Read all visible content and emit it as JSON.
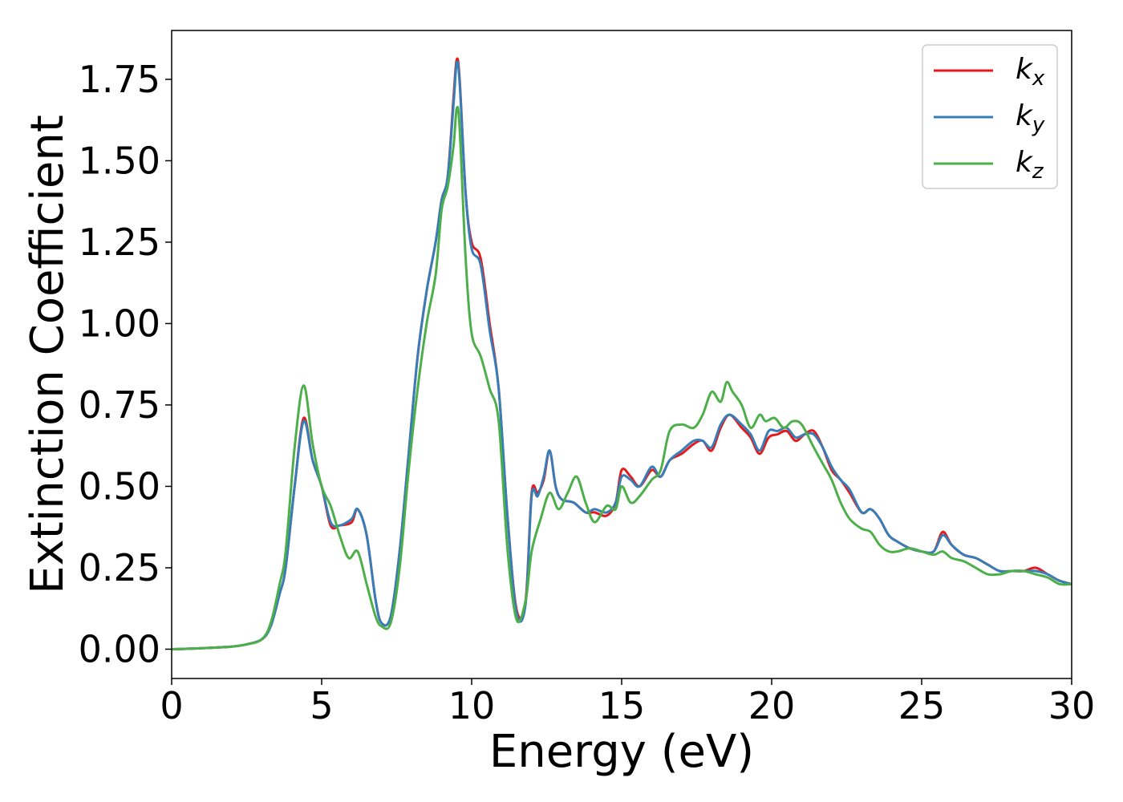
{
  "chart_data": {
    "type": "line",
    "title": "",
    "xlabel": "Energy (eV)",
    "ylabel": "Extinction Coefficient",
    "xlim": [
      0,
      30
    ],
    "ylim": [
      -0.09,
      1.9
    ],
    "xticks": [
      0,
      5,
      10,
      15,
      20,
      25,
      30
    ],
    "xtick_labels": [
      "0",
      "5",
      "10",
      "15",
      "20",
      "25",
      "30"
    ],
    "yticks": [
      0.0,
      0.25,
      0.5,
      0.75,
      1.0,
      1.25,
      1.5,
      1.75
    ],
    "ytick_labels": [
      "0.00",
      "0.25",
      "0.50",
      "0.75",
      "1.00",
      "1.25",
      "1.50",
      "1.75"
    ],
    "grid": false,
    "legend_position": "top-right",
    "series": [
      {
        "name": "k",
        "subscript": "x",
        "color": "#e41a1c",
        "x": [
          0,
          1,
          2,
          2.5,
          3,
          3.3,
          3.6,
          3.8,
          4.1,
          4.4,
          4.7,
          5.0,
          5.3,
          5.6,
          6.0,
          6.2,
          6.5,
          6.8,
          7.0,
          7.3,
          7.6,
          7.9,
          8.2,
          8.5,
          8.8,
          9.0,
          9.2,
          9.4,
          9.5,
          9.6,
          9.8,
          10.0,
          10.3,
          10.6,
          10.9,
          11.2,
          11.5,
          11.8,
          12.0,
          12.2,
          12.4,
          12.6,
          12.8,
          13.0,
          13.4,
          13.8,
          14.1,
          14.5,
          14.8,
          15.0,
          15.3,
          15.6,
          16.0,
          16.3,
          16.6,
          17.0,
          17.4,
          17.7,
          18.0,
          18.3,
          18.6,
          19.0,
          19.3,
          19.6,
          19.9,
          20.2,
          20.5,
          20.8,
          21.1,
          21.4,
          21.7,
          22.0,
          22.3,
          22.6,
          23.0,
          23.3,
          23.6,
          23.9,
          24.2,
          24.6,
          25.0,
          25.4,
          25.7,
          26.0,
          26.4,
          26.8,
          27.2,
          27.6,
          28.0,
          28.4,
          28.8,
          29.2,
          29.6,
          30.0
        ],
        "y": [
          0.0,
          0.003,
          0.008,
          0.015,
          0.03,
          0.07,
          0.17,
          0.25,
          0.5,
          0.71,
          0.58,
          0.5,
          0.38,
          0.38,
          0.39,
          0.43,
          0.35,
          0.15,
          0.08,
          0.1,
          0.3,
          0.6,
          0.9,
          1.1,
          1.25,
          1.38,
          1.45,
          1.7,
          1.81,
          1.75,
          1.4,
          1.25,
          1.2,
          1.0,
          0.8,
          0.4,
          0.12,
          0.15,
          0.48,
          0.48,
          0.52,
          0.61,
          0.5,
          0.46,
          0.45,
          0.42,
          0.42,
          0.41,
          0.45,
          0.55,
          0.53,
          0.5,
          0.55,
          0.53,
          0.58,
          0.6,
          0.63,
          0.64,
          0.61,
          0.68,
          0.72,
          0.68,
          0.65,
          0.6,
          0.65,
          0.66,
          0.67,
          0.64,
          0.66,
          0.67,
          0.62,
          0.55,
          0.52,
          0.48,
          0.42,
          0.43,
          0.4,
          0.35,
          0.33,
          0.31,
          0.3,
          0.3,
          0.36,
          0.32,
          0.29,
          0.28,
          0.26,
          0.24,
          0.24,
          0.24,
          0.25,
          0.23,
          0.21,
          0.2
        ]
      },
      {
        "name": "k",
        "subscript": "y",
        "color": "#377eb8",
        "x": [
          0,
          1,
          2,
          2.5,
          3,
          3.3,
          3.6,
          3.8,
          4.1,
          4.4,
          4.7,
          5.0,
          5.3,
          5.6,
          6.0,
          6.2,
          6.5,
          6.8,
          7.0,
          7.3,
          7.6,
          7.9,
          8.2,
          8.5,
          8.8,
          9.0,
          9.2,
          9.4,
          9.5,
          9.6,
          9.8,
          10.0,
          10.3,
          10.6,
          10.9,
          11.2,
          11.5,
          11.8,
          12.0,
          12.2,
          12.4,
          12.6,
          12.8,
          13.0,
          13.4,
          13.8,
          14.1,
          14.5,
          14.8,
          15.0,
          15.3,
          15.6,
          16.0,
          16.3,
          16.6,
          17.0,
          17.4,
          17.7,
          18.0,
          18.3,
          18.6,
          19.0,
          19.3,
          19.6,
          19.9,
          20.2,
          20.5,
          20.8,
          21.1,
          21.4,
          21.7,
          22.0,
          22.3,
          22.6,
          23.0,
          23.3,
          23.6,
          23.9,
          24.2,
          24.6,
          25.0,
          25.4,
          25.7,
          26.0,
          26.4,
          26.8,
          27.2,
          27.6,
          28.0,
          28.4,
          28.8,
          29.2,
          29.6,
          30.0
        ],
        "y": [
          0.0,
          0.003,
          0.008,
          0.015,
          0.03,
          0.07,
          0.17,
          0.25,
          0.5,
          0.7,
          0.58,
          0.5,
          0.39,
          0.38,
          0.4,
          0.43,
          0.35,
          0.15,
          0.08,
          0.1,
          0.3,
          0.6,
          0.9,
          1.1,
          1.25,
          1.38,
          1.45,
          1.68,
          1.8,
          1.74,
          1.4,
          1.23,
          1.18,
          0.98,
          0.8,
          0.4,
          0.11,
          0.14,
          0.47,
          0.47,
          0.53,
          0.61,
          0.5,
          0.46,
          0.45,
          0.42,
          0.43,
          0.42,
          0.45,
          0.53,
          0.52,
          0.5,
          0.56,
          0.53,
          0.58,
          0.61,
          0.64,
          0.64,
          0.62,
          0.69,
          0.72,
          0.69,
          0.66,
          0.61,
          0.67,
          0.67,
          0.68,
          0.65,
          0.66,
          0.66,
          0.62,
          0.56,
          0.52,
          0.49,
          0.42,
          0.43,
          0.4,
          0.35,
          0.33,
          0.31,
          0.3,
          0.3,
          0.35,
          0.32,
          0.29,
          0.28,
          0.26,
          0.24,
          0.24,
          0.24,
          0.24,
          0.23,
          0.21,
          0.2
        ]
      },
      {
        "name": "k",
        "subscript": "z",
        "color": "#4daf4a",
        "x": [
          0,
          1,
          2,
          2.5,
          3,
          3.3,
          3.6,
          3.8,
          4.1,
          4.4,
          4.7,
          5.0,
          5.3,
          5.6,
          5.9,
          6.2,
          6.5,
          6.8,
          7.0,
          7.3,
          7.6,
          7.9,
          8.2,
          8.5,
          8.8,
          9.0,
          9.2,
          9.4,
          9.5,
          9.6,
          9.8,
          10.0,
          10.3,
          10.6,
          10.9,
          11.2,
          11.5,
          11.8,
          12.0,
          12.3,
          12.6,
          12.9,
          13.2,
          13.5,
          13.8,
          14.1,
          14.5,
          14.8,
          15.0,
          15.3,
          15.6,
          16.0,
          16.3,
          16.6,
          17.0,
          17.4,
          17.7,
          18.0,
          18.3,
          18.5,
          18.7,
          19.0,
          19.3,
          19.6,
          19.8,
          20.1,
          20.4,
          20.7,
          21.0,
          21.4,
          21.7,
          22.0,
          22.3,
          22.6,
          23.0,
          23.3,
          23.6,
          23.9,
          24.2,
          24.6,
          25.0,
          25.4,
          25.7,
          26.0,
          26.4,
          26.8,
          27.2,
          27.6,
          28.0,
          28.4,
          28.8,
          29.2,
          29.6,
          30.0
        ],
        "y": [
          0.0,
          0.003,
          0.008,
          0.015,
          0.03,
          0.08,
          0.2,
          0.3,
          0.62,
          0.81,
          0.63,
          0.5,
          0.44,
          0.35,
          0.28,
          0.3,
          0.2,
          0.1,
          0.07,
          0.08,
          0.25,
          0.55,
          0.8,
          1.0,
          1.15,
          1.35,
          1.42,
          1.55,
          1.66,
          1.6,
          1.2,
          0.97,
          0.9,
          0.8,
          0.7,
          0.3,
          0.09,
          0.15,
          0.3,
          0.4,
          0.48,
          0.43,
          0.48,
          0.53,
          0.45,
          0.39,
          0.44,
          0.43,
          0.5,
          0.45,
          0.47,
          0.52,
          0.55,
          0.67,
          0.69,
          0.68,
          0.72,
          0.79,
          0.76,
          0.82,
          0.79,
          0.75,
          0.68,
          0.72,
          0.7,
          0.71,
          0.68,
          0.7,
          0.69,
          0.62,
          0.57,
          0.52,
          0.45,
          0.4,
          0.37,
          0.36,
          0.32,
          0.3,
          0.3,
          0.31,
          0.3,
          0.29,
          0.3,
          0.28,
          0.27,
          0.25,
          0.23,
          0.23,
          0.24,
          0.24,
          0.23,
          0.22,
          0.2,
          0.2
        ]
      }
    ]
  }
}
